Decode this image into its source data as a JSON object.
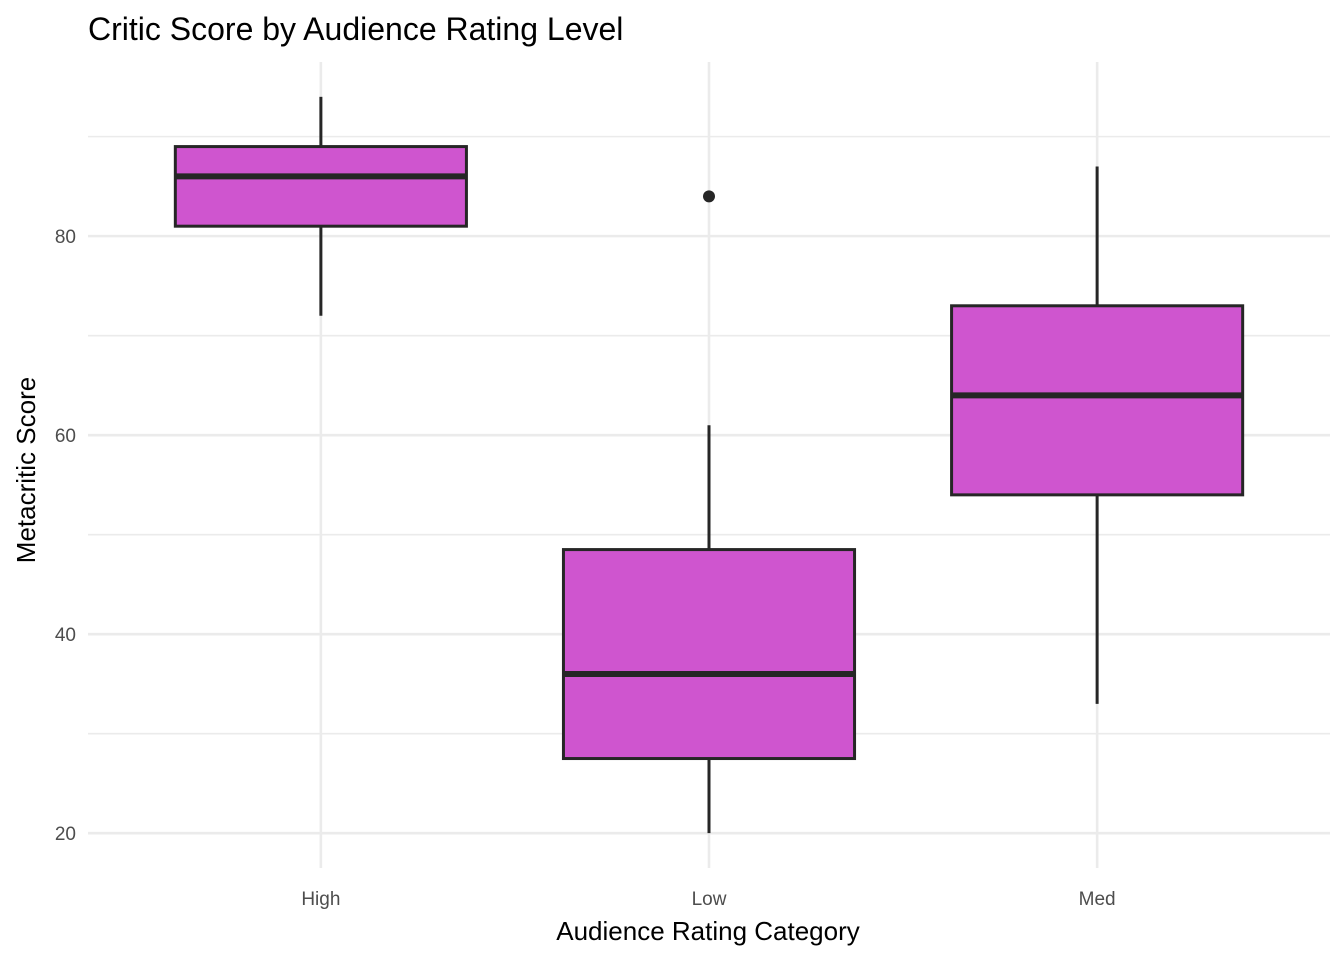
{
  "chart_data": {
    "type": "box",
    "title": "Critic Score by Audience Rating Level",
    "xlabel": "Audience Rating Category",
    "ylabel": "Metacritic Score",
    "ylim": [
      16.5,
      97.5
    ],
    "yticks": [
      20,
      40,
      60,
      80
    ],
    "grid": true,
    "fill_color": "#cf55cf",
    "stroke_color": "#262626",
    "categories": [
      "High",
      "Low",
      "Med"
    ],
    "boxes": [
      {
        "category": "High",
        "whisker_low": 72,
        "q1": 81,
        "median": 86,
        "q3": 89,
        "whisker_high": 94,
        "outliers": []
      },
      {
        "category": "Low",
        "whisker_low": 20,
        "q1": 27.5,
        "median": 36,
        "q3": 48.5,
        "whisker_high": 61,
        "outliers": [
          84
        ]
      },
      {
        "category": "Med",
        "whisker_low": 33,
        "q1": 54,
        "median": 64,
        "q3": 73,
        "whisker_high": 87,
        "outliers": []
      }
    ]
  }
}
